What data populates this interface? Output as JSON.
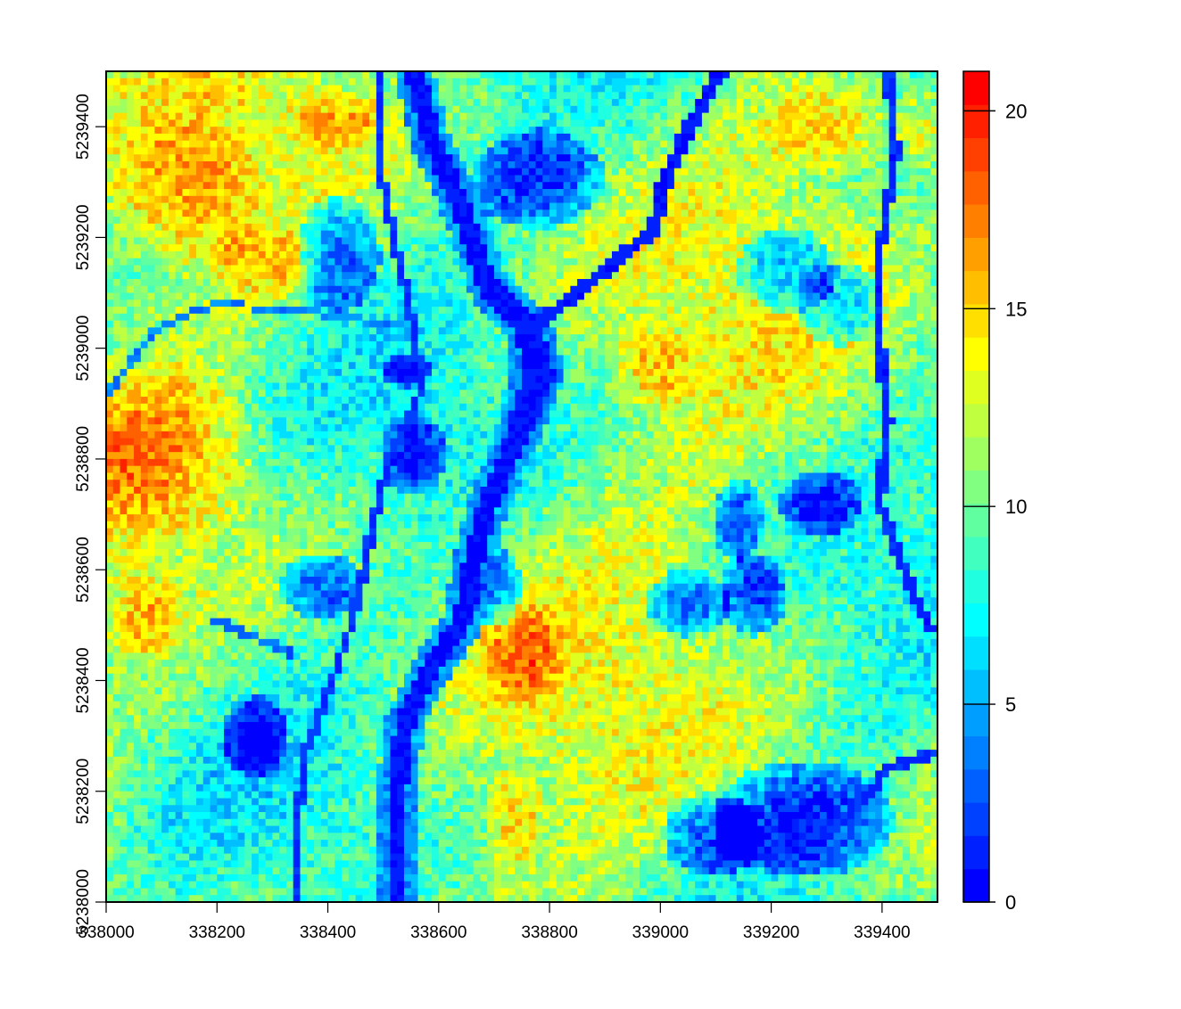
{
  "chart_data": {
    "type": "heatmap",
    "title": "",
    "xlabel": "",
    "ylabel": "",
    "xlim": [
      338000,
      339500
    ],
    "ylim": [
      5238000,
      5239500
    ],
    "x_ticks": [
      "338000",
      "338200",
      "338400",
      "338600",
      "338800",
      "339000",
      "339200",
      "339400"
    ],
    "y_ticks": [
      "5238000",
      "5238200",
      "5238400",
      "5238600",
      "5238800",
      "5239000",
      "5239200",
      "5239400"
    ],
    "colorbar": {
      "range": [
        0,
        21
      ],
      "ticks": [
        "0",
        "5",
        "10",
        "15",
        "20"
      ],
      "colors": [
        "#0000ff",
        "#0020ff",
        "#0040ff",
        "#0060ff",
        "#0080ff",
        "#009fff",
        "#00bfff",
        "#00dfff",
        "#00ffff",
        "#20ffdf",
        "#40ffbf",
        "#60ff9f",
        "#80ff80",
        "#9fff60",
        "#bfff40",
        "#dfff20",
        "#ffff00",
        "#ffdf00",
        "#ffbf00",
        "#ff9f00",
        "#ff8000",
        "#ff6000",
        "#ff4000",
        "#ff2000",
        "#ff0000"
      ]
    },
    "grid": false,
    "legend": "right"
  }
}
